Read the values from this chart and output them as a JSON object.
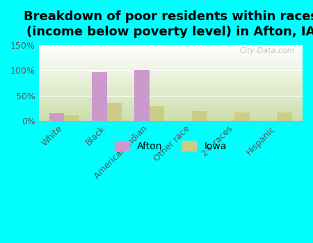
{
  "title": "Breakdown of poor residents within races\n(income below poverty level) in Afton, IA",
  "categories": [
    "White",
    "Black",
    "American Indian",
    "Other race",
    "2+ races",
    "Hispanic"
  ],
  "afton_values": [
    15,
    96,
    100,
    0,
    0,
    0
  ],
  "iowa_values": [
    11,
    35,
    29,
    19,
    16,
    16
  ],
  "afton_color": "#cc99cc",
  "iowa_color": "#cccc88",
  "background_color": "#00ffff",
  "ylim": [
    0,
    150
  ],
  "yticks": [
    0,
    50,
    100,
    150
  ],
  "yticklabels": [
    "0%",
    "50%",
    "100%",
    "150%"
  ],
  "bar_width": 0.35,
  "title_fontsize": 13,
  "tick_fontsize": 9,
  "legend_fontsize": 10,
  "watermark": "City-Data.com"
}
